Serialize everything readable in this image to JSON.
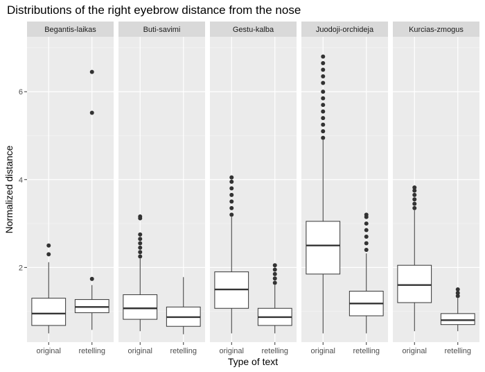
{
  "chart_data": {
    "type": "boxplot",
    "title": "Distributions of the right eyebrow distance from the nose",
    "xlabel": "Type of text",
    "ylabel": "Normalized distance",
    "ylim": [
      0.3,
      7.25
    ],
    "yticks": [
      2,
      4,
      6
    ],
    "categories": [
      "original",
      "retelling"
    ],
    "facets": [
      {
        "name": "Begantis-laikas",
        "boxes": [
          {
            "category": "original",
            "whisker_low": 0.5,
            "q1": 0.68,
            "median": 0.95,
            "q3": 1.3,
            "whisker_high": 2.12,
            "outliers": [
              2.3,
              2.5
            ]
          },
          {
            "category": "retelling",
            "whisker_low": 0.58,
            "q1": 0.97,
            "median": 1.1,
            "q3": 1.27,
            "whisker_high": 1.6,
            "outliers": [
              1.74,
              5.52,
              6.45
            ]
          }
        ]
      },
      {
        "name": "Buti-savimi",
        "boxes": [
          {
            "category": "original",
            "whisker_low": 0.55,
            "q1": 0.82,
            "median": 1.07,
            "q3": 1.38,
            "whisker_high": 2.2,
            "outliers": [
              2.25,
              2.35,
              2.45,
              2.55,
              2.65,
              2.75,
              3.12,
              3.16
            ]
          },
          {
            "category": "retelling",
            "whisker_low": 0.48,
            "q1": 0.66,
            "median": 0.87,
            "q3": 1.1,
            "whisker_high": 1.78,
            "outliers": []
          }
        ]
      },
      {
        "name": "Gestu-kalba",
        "boxes": [
          {
            "category": "original",
            "whisker_low": 0.5,
            "q1": 1.07,
            "median": 1.5,
            "q3": 1.9,
            "whisker_high": 3.15,
            "outliers": [
              3.2,
              3.35,
              3.5,
              3.65,
              3.8,
              3.95,
              4.05
            ]
          },
          {
            "category": "retelling",
            "whisker_low": 0.5,
            "q1": 0.68,
            "median": 0.87,
            "q3": 1.07,
            "whisker_high": 1.6,
            "outliers": [
              1.65,
              1.75,
              1.85,
              1.95,
              2.05
            ]
          }
        ]
      },
      {
        "name": "Juodoji-orchideja",
        "boxes": [
          {
            "category": "original",
            "whisker_low": 0.5,
            "q1": 1.85,
            "median": 2.5,
            "q3": 3.05,
            "whisker_high": 4.9,
            "outliers": [
              4.95,
              5.1,
              5.25,
              5.4,
              5.55,
              5.7,
              5.85,
              6.0,
              6.2,
              6.35,
              6.5,
              6.65,
              6.8
            ]
          },
          {
            "category": "retelling",
            "whisker_low": 0.5,
            "q1": 0.9,
            "median": 1.18,
            "q3": 1.46,
            "whisker_high": 2.32,
            "outliers": [
              2.4,
              2.55,
              2.7,
              2.85,
              3.0,
              3.15,
              3.2
            ]
          }
        ]
      },
      {
        "name": "Kurcias-zmogus",
        "boxes": [
          {
            "category": "original",
            "whisker_low": 0.55,
            "q1": 1.2,
            "median": 1.6,
            "q3": 2.05,
            "whisker_high": 3.3,
            "outliers": [
              3.35,
              3.45,
              3.55,
              3.65,
              3.75,
              3.82
            ]
          },
          {
            "category": "retelling",
            "whisker_low": 0.55,
            "q1": 0.7,
            "median": 0.8,
            "q3": 0.95,
            "whisker_high": 1.3,
            "outliers": [
              1.35,
              1.42,
              1.5
            ]
          }
        ]
      }
    ]
  }
}
